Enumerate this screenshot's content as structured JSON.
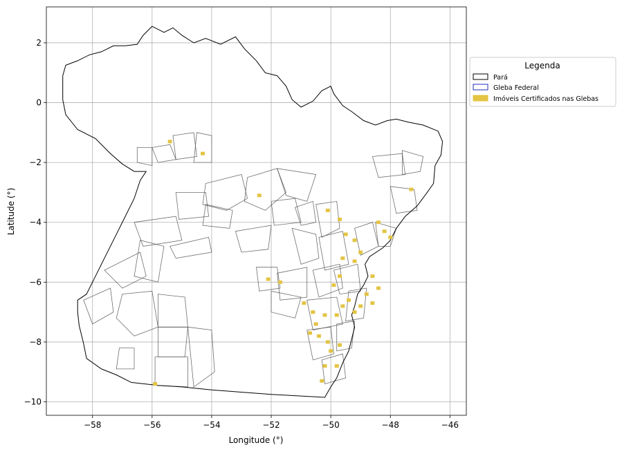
{
  "chart_data": {
    "type": "map",
    "xlabel": "Longitude (°)",
    "ylabel": "Latitude (°)",
    "xlim": [
      -59.55,
      -45.45
    ],
    "ylim": [
      -10.45,
      3.2
    ],
    "xticks": [
      -58,
      -56,
      -54,
      -52,
      -50,
      -48,
      -46
    ],
    "yticks": [
      2,
      0,
      -2,
      -4,
      -6,
      -8,
      -10
    ],
    "xtick_labels": [
      "−58",
      "−56",
      "−54",
      "−52",
      "−50",
      "−48",
      "−46"
    ],
    "ytick_labels": [
      "2",
      "0",
      "−2",
      "−4",
      "−6",
      "−8",
      "−10"
    ],
    "grid": true,
    "legend": {
      "title": "Legenda",
      "placement": "outside-right",
      "entries": [
        {
          "label": "Pará",
          "face": "#ffffff",
          "edge": "#000000"
        },
        {
          "label": "Gleba Federal",
          "face": "#ffffff",
          "edge": "#1f2dbf"
        },
        {
          "label": "Imóveis Certificados nas Glebas",
          "face": "#e3c443",
          "edge": "#e3c443"
        }
      ]
    },
    "colors": {
      "para": "#000000",
      "gleba": "#1f2dbf",
      "imoveis": "#e3c443",
      "grid": "#b0b0b0"
    },
    "para_outline": [
      [
        -59.0,
        0.9
      ],
      [
        -58.9,
        1.25
      ],
      [
        -58.5,
        1.4
      ],
      [
        -58.1,
        1.6
      ],
      [
        -57.7,
        1.7
      ],
      [
        -57.3,
        1.9
      ],
      [
        -56.9,
        1.9
      ],
      [
        -56.5,
        1.95
      ],
      [
        -56.3,
        2.25
      ],
      [
        -56.0,
        2.55
      ],
      [
        -55.6,
        2.35
      ],
      [
        -55.3,
        2.5
      ],
      [
        -55.0,
        2.25
      ],
      [
        -54.6,
        2.0
      ],
      [
        -54.2,
        2.15
      ],
      [
        -53.7,
        1.95
      ],
      [
        -53.2,
        2.2
      ],
      [
        -52.9,
        1.8
      ],
      [
        -52.5,
        1.4
      ],
      [
        -52.2,
        1.0
      ],
      [
        -51.8,
        0.9
      ],
      [
        -51.5,
        0.55
      ],
      [
        -51.3,
        0.1
      ],
      [
        -51.0,
        -0.15
      ],
      [
        -50.6,
        0.05
      ],
      [
        -50.3,
        0.4
      ],
      [
        -50.0,
        0.55
      ],
      [
        -49.9,
        0.3
      ],
      [
        -49.6,
        -0.1
      ],
      [
        -49.3,
        -0.3
      ],
      [
        -48.9,
        -0.6
      ],
      [
        -48.5,
        -0.75
      ],
      [
        -48.1,
        -0.6
      ],
      [
        -47.8,
        -0.55
      ],
      [
        -47.4,
        -0.65
      ],
      [
        -46.9,
        -0.75
      ],
      [
        -46.4,
        -0.95
      ],
      [
        -46.25,
        -1.3
      ],
      [
        -46.3,
        -1.75
      ],
      [
        -46.5,
        -2.1
      ],
      [
        -46.55,
        -2.7
      ],
      [
        -46.8,
        -3.05
      ],
      [
        -47.1,
        -3.45
      ],
      [
        -47.5,
        -3.8
      ],
      [
        -47.8,
        -4.2
      ],
      [
        -48.0,
        -4.6
      ],
      [
        -48.25,
        -4.85
      ],
      [
        -48.7,
        -5.15
      ],
      [
        -48.85,
        -5.4
      ],
      [
        -48.75,
        -5.8
      ],
      [
        -48.9,
        -6.1
      ],
      [
        -49.1,
        -6.4
      ],
      [
        -49.2,
        -6.8
      ],
      [
        -49.3,
        -7.1
      ],
      [
        -49.2,
        -7.5
      ],
      [
        -49.3,
        -7.9
      ],
      [
        -49.4,
        -8.3
      ],
      [
        -49.6,
        -8.7
      ],
      [
        -49.8,
        -9.2
      ],
      [
        -50.0,
        -9.5
      ],
      [
        -50.2,
        -9.85
      ],
      [
        -52.0,
        -9.75
      ],
      [
        -54.0,
        -9.6
      ],
      [
        -55.0,
        -9.5
      ],
      [
        -55.8,
        -9.45
      ],
      [
        -56.7,
        -9.35
      ],
      [
        -57.2,
        -9.1
      ],
      [
        -57.7,
        -8.9
      ],
      [
        -58.2,
        -8.55
      ],
      [
        -58.3,
        -8.05
      ],
      [
        -58.45,
        -7.45
      ],
      [
        -58.5,
        -7.0
      ],
      [
        -58.5,
        -6.6
      ],
      [
        -58.2,
        -6.4
      ],
      [
        -57.9,
        -5.8
      ],
      [
        -57.6,
        -5.2
      ],
      [
        -57.3,
        -4.6
      ],
      [
        -56.9,
        -3.8
      ],
      [
        -56.6,
        -3.2
      ],
      [
        -56.4,
        -2.6
      ],
      [
        -56.2,
        -2.3
      ],
      [
        -56.6,
        -2.3
      ],
      [
        -57.0,
        -2.05
      ],
      [
        -57.4,
        -1.7
      ],
      [
        -57.9,
        -1.2
      ],
      [
        -58.5,
        -0.9
      ],
      [
        -58.9,
        -0.4
      ],
      [
        -59.0,
        0.1
      ]
    ],
    "glebas": [
      [
        [
          -56.0,
          -1.5
        ],
        [
          -55.4,
          -1.4
        ],
        [
          -55.2,
          -1.9
        ],
        [
          -55.8,
          -2.0
        ]
      ],
      [
        [
          -55.3,
          -1.1
        ],
        [
          -54.6,
          -1.0
        ],
        [
          -54.5,
          -1.8
        ],
        [
          -55.2,
          -1.9
        ]
      ],
      [
        [
          -54.5,
          -1.0
        ],
        [
          -54.0,
          -1.1
        ],
        [
          -54.0,
          -2.0
        ],
        [
          -54.6,
          -2.0
        ]
      ],
      [
        [
          -56.5,
          -1.5
        ],
        [
          -56.0,
          -1.5
        ],
        [
          -56.0,
          -2.1
        ],
        [
          -56.5,
          -2.0
        ]
      ],
      [
        [
          -54.2,
          -2.7
        ],
        [
          -53.0,
          -2.4
        ],
        [
          -52.8,
          -3.2
        ],
        [
          -53.5,
          -3.6
        ],
        [
          -54.3,
          -3.4
        ]
      ],
      [
        [
          -55.2,
          -3.0
        ],
        [
          -54.2,
          -3.0
        ],
        [
          -54.1,
          -3.8
        ],
        [
          -55.1,
          -3.9
        ]
      ],
      [
        [
          -52.8,
          -2.5
        ],
        [
          -51.8,
          -2.2
        ],
        [
          -51.5,
          -3.0
        ],
        [
          -52.2,
          -3.6
        ],
        [
          -52.9,
          -3.3
        ]
      ],
      [
        [
          -51.8,
          -2.2
        ],
        [
          -50.5,
          -2.4
        ],
        [
          -50.8,
          -3.3
        ],
        [
          -51.5,
          -3.1
        ]
      ],
      [
        [
          -52.0,
          -3.3
        ],
        [
          -51.2,
          -3.2
        ],
        [
          -51.0,
          -4.0
        ],
        [
          -51.9,
          -4.1
        ]
      ],
      [
        [
          -51.2,
          -3.5
        ],
        [
          -50.6,
          -3.3
        ],
        [
          -50.5,
          -4.0
        ],
        [
          -51.0,
          -4.1
        ]
      ],
      [
        [
          -54.2,
          -3.4
        ],
        [
          -53.3,
          -3.6
        ],
        [
          -53.4,
          -4.2
        ],
        [
          -54.3,
          -4.1
        ]
      ],
      [
        [
          -56.6,
          -4.0
        ],
        [
          -55.2,
          -3.8
        ],
        [
          -55.0,
          -4.6
        ],
        [
          -56.3,
          -4.8
        ]
      ],
      [
        [
          -55.4,
          -4.8
        ],
        [
          -54.1,
          -4.5
        ],
        [
          -54.0,
          -5.0
        ],
        [
          -55.2,
          -5.2
        ]
      ],
      [
        [
          -57.6,
          -5.6
        ],
        [
          -56.4,
          -5.0
        ],
        [
          -56.2,
          -5.8
        ],
        [
          -57.0,
          -6.2
        ]
      ],
      [
        [
          -57.0,
          -6.4
        ],
        [
          -56.0,
          -6.3
        ],
        [
          -55.8,
          -7.5
        ],
        [
          -56.6,
          -7.8
        ],
        [
          -57.2,
          -7.2
        ]
      ],
      [
        [
          -55.8,
          -6.4
        ],
        [
          -54.9,
          -6.5
        ],
        [
          -54.8,
          -7.5
        ],
        [
          -55.8,
          -7.5
        ]
      ],
      [
        [
          -56.4,
          -4.6
        ],
        [
          -55.6,
          -4.8
        ],
        [
          -55.8,
          -6.0
        ],
        [
          -56.6,
          -5.8
        ]
      ],
      [
        [
          -58.3,
          -6.6
        ],
        [
          -57.4,
          -6.2
        ],
        [
          -57.3,
          -7.0
        ],
        [
          -58.0,
          -7.4
        ]
      ],
      [
        [
          -57.1,
          -8.2
        ],
        [
          -56.6,
          -8.2
        ],
        [
          -56.6,
          -8.9
        ],
        [
          -57.2,
          -8.9
        ]
      ],
      [
        [
          -55.8,
          -7.5
        ],
        [
          -54.8,
          -7.5
        ],
        [
          -54.9,
          -8.5
        ],
        [
          -55.8,
          -8.5
        ]
      ],
      [
        [
          -55.9,
          -8.5
        ],
        [
          -54.8,
          -8.5
        ],
        [
          -54.8,
          -9.5
        ],
        [
          -55.9,
          -9.45
        ]
      ],
      [
        [
          -54.8,
          -7.5
        ],
        [
          -54.0,
          -7.6
        ],
        [
          -53.9,
          -9.0
        ],
        [
          -54.6,
          -9.5
        ]
      ],
      [
        [
          -52.5,
          -5.5
        ],
        [
          -51.8,
          -5.5
        ],
        [
          -51.7,
          -6.2
        ],
        [
          -52.4,
          -6.3
        ]
      ],
      [
        [
          -51.8,
          -5.7
        ],
        [
          -50.8,
          -5.5
        ],
        [
          -50.8,
          -6.5
        ],
        [
          -51.7,
          -6.6
        ]
      ],
      [
        [
          -52.0,
          -6.3
        ],
        [
          -51.0,
          -6.5
        ],
        [
          -51.2,
          -7.2
        ],
        [
          -52.0,
          -7.0
        ]
      ],
      [
        [
          -51.3,
          -4.2
        ],
        [
          -50.5,
          -4.4
        ],
        [
          -50.4,
          -5.2
        ],
        [
          -51.0,
          -5.4
        ]
      ],
      [
        [
          -50.5,
          -3.4
        ],
        [
          -49.8,
          -3.3
        ],
        [
          -49.7,
          -4.2
        ],
        [
          -50.3,
          -4.5
        ]
      ],
      [
        [
          -50.4,
          -4.5
        ],
        [
          -49.6,
          -4.3
        ],
        [
          -49.4,
          -5.4
        ],
        [
          -50.2,
          -5.6
        ]
      ],
      [
        [
          -50.6,
          -5.6
        ],
        [
          -49.7,
          -5.4
        ],
        [
          -49.6,
          -6.2
        ],
        [
          -50.4,
          -6.5
        ]
      ],
      [
        [
          -50.8,
          -6.6
        ],
        [
          -49.8,
          -6.5
        ],
        [
          -49.6,
          -7.4
        ],
        [
          -50.6,
          -7.6
        ]
      ],
      [
        [
          -50.8,
          -7.6
        ],
        [
          -50.0,
          -7.5
        ],
        [
          -49.9,
          -8.4
        ],
        [
          -50.6,
          -8.6
        ]
      ],
      [
        [
          -50.3,
          -8.6
        ],
        [
          -49.6,
          -8.4
        ],
        [
          -49.5,
          -9.2
        ],
        [
          -50.2,
          -9.4
        ]
      ],
      [
        [
          -49.9,
          -5.6
        ],
        [
          -49.1,
          -5.4
        ],
        [
          -49.0,
          -6.3
        ],
        [
          -49.7,
          -6.4
        ]
      ],
      [
        [
          -49.2,
          -4.2
        ],
        [
          -48.6,
          -4.0
        ],
        [
          -48.4,
          -4.8
        ],
        [
          -49.0,
          -5.1
        ]
      ],
      [
        [
          -48.5,
          -4.0
        ],
        [
          -47.8,
          -4.2
        ],
        [
          -48.0,
          -4.8
        ],
        [
          -48.4,
          -4.8
        ]
      ],
      [
        [
          -49.4,
          -6.3
        ],
        [
          -48.8,
          -6.2
        ],
        [
          -48.9,
          -7.2
        ],
        [
          -49.5,
          -7.3
        ]
      ],
      [
        [
          -49.8,
          -7.4
        ],
        [
          -49.2,
          -7.3
        ],
        [
          -49.3,
          -8.2
        ],
        [
          -49.8,
          -8.3
        ]
      ],
      [
        [
          -48.6,
          -1.8
        ],
        [
          -47.6,
          -1.7
        ],
        [
          -47.5,
          -2.4
        ],
        [
          -48.4,
          -2.5
        ]
      ],
      [
        [
          -47.6,
          -1.6
        ],
        [
          -46.9,
          -1.8
        ],
        [
          -47.0,
          -2.3
        ],
        [
          -47.6,
          -2.4
        ]
      ],
      [
        [
          -48.0,
          -2.8
        ],
        [
          -47.2,
          -2.9
        ],
        [
          -47.1,
          -3.6
        ],
        [
          -47.8,
          -3.7
        ]
      ],
      [
        [
          -53.2,
          -4.3
        ],
        [
          -52.0,
          -4.1
        ],
        [
          -52.1,
          -4.9
        ],
        [
          -53.0,
          -5.0
        ]
      ]
    ],
    "imoveis": [
      [
        -55.4,
        -1.3
      ],
      [
        -54.3,
        -1.7
      ],
      [
        -52.4,
        -3.1
      ],
      [
        -50.1,
        -3.6
      ],
      [
        -49.7,
        -3.9
      ],
      [
        -49.5,
        -4.4
      ],
      [
        -49.2,
        -4.6
      ],
      [
        -49.6,
        -5.2
      ],
      [
        -49.2,
        -5.3
      ],
      [
        -49.0,
        -5.0
      ],
      [
        -48.4,
        -4.0
      ],
      [
        -48.2,
        -4.3
      ],
      [
        -48.0,
        -4.5
      ],
      [
        -47.3,
        -2.9
      ],
      [
        -49.7,
        -5.8
      ],
      [
        -49.9,
        -6.1
      ],
      [
        -48.6,
        -5.8
      ],
      [
        -48.8,
        -6.4
      ],
      [
        -48.6,
        -6.7
      ],
      [
        -49.0,
        -6.8
      ],
      [
        -49.2,
        -7.0
      ],
      [
        -49.6,
        -6.8
      ],
      [
        -49.8,
        -7.1
      ],
      [
        -50.2,
        -7.1
      ],
      [
        -50.6,
        -7.0
      ],
      [
        -50.7,
        -7.7
      ],
      [
        -50.4,
        -7.8
      ],
      [
        -50.1,
        -8.0
      ],
      [
        -49.7,
        -8.1
      ],
      [
        -50.0,
        -8.3
      ],
      [
        -50.2,
        -8.8
      ],
      [
        -49.8,
        -8.8
      ],
      [
        -50.3,
        -9.3
      ],
      [
        -52.1,
        -5.9
      ],
      [
        -51.7,
        -6.0
      ],
      [
        -55.9,
        -9.4
      ],
      [
        -50.9,
        -6.7
      ],
      [
        -50.5,
        -7.4
      ],
      [
        -49.4,
        -6.6
      ],
      [
        -48.4,
        -6.2
      ]
    ]
  }
}
